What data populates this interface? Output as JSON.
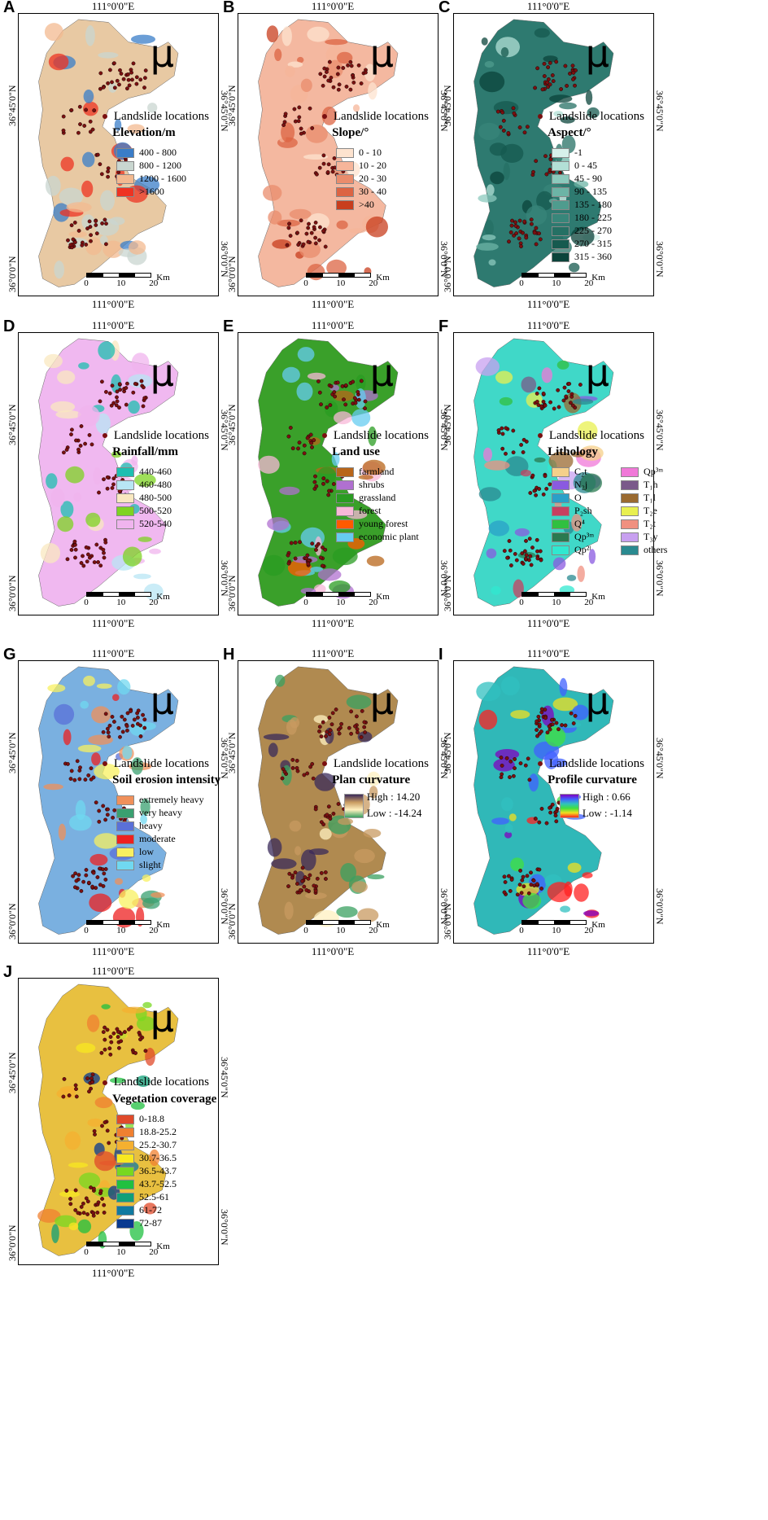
{
  "common": {
    "lon_label": "111°0'0\"E",
    "lat_top_label": "36°45'0\"N",
    "lat_bottom_label": "36°0'0\"N",
    "north_symbol": "μ",
    "landslide_label": "Landslide locations",
    "scale_ticks": [
      "0",
      "10",
      "20"
    ],
    "scale_unit": "Km",
    "landslide_color": "#7a1010"
  },
  "panels": [
    {
      "letter": "A",
      "title": "Elevation/m",
      "background": "#e8c9a3",
      "legend": [
        {
          "label": "400 - 800",
          "color": "#3a7dc8"
        },
        {
          "label": "800 - 1200",
          "color": "#c9d6d0"
        },
        {
          "label": "1200 - 1600",
          "color": "#f3b990"
        },
        {
          "label": ">1600",
          "color": "#ee3322"
        }
      ]
    },
    {
      "letter": "B",
      "title": "Slope/°",
      "background": "#f4b8a0",
      "legend": [
        {
          "label": "0 - 10",
          "color": "#fde3cf"
        },
        {
          "label": "10 - 20",
          "color": "#f6b59a"
        },
        {
          "label": "20 - 30",
          "color": "#ea8c6c"
        },
        {
          "label": "30 - 40",
          "color": "#dc6443"
        },
        {
          "label": ">40",
          "color": "#c83e1d"
        }
      ]
    },
    {
      "letter": "C",
      "title": "Aspect/°",
      "background": "#2e7a70",
      "legend": [
        {
          "label": "-1",
          "color": "#d6f0ea"
        },
        {
          "label": "0 - 45",
          "color": "#b2e0d6"
        },
        {
          "label": "45 - 90",
          "color": "#8ccabd"
        },
        {
          "label": "90 - 135",
          "color": "#6cb4a6"
        },
        {
          "label": "135 - 180",
          "color": "#4f9c8e"
        },
        {
          "label": "180 - 225",
          "color": "#38867a"
        },
        {
          "label": "225 - 270",
          "color": "#257064"
        },
        {
          "label": "270 - 315",
          "color": "#165a4f"
        },
        {
          "label": "315 - 360",
          "color": "#0b443b"
        }
      ]
    },
    {
      "letter": "D",
      "title": "Rainfall/mm",
      "background": "#f0b8f0",
      "legend": [
        {
          "label": "440-460",
          "color": "#1ebfb0"
        },
        {
          "label": "460-480",
          "color": "#b8e6f4"
        },
        {
          "label": "480-500",
          "color": "#f9e8c0"
        },
        {
          "label": "500-520",
          "color": "#7ed321"
        },
        {
          "label": "520-540",
          "color": "#f0b4ee"
        }
      ]
    },
    {
      "letter": "E",
      "title": "Land use",
      "background": "#3aa02a",
      "legend": [
        {
          "label": "farmland",
          "color": "#b8661a"
        },
        {
          "label": "shrubs",
          "color": "#b070d0"
        },
        {
          "label": "grassland",
          "color": "#2a9c22"
        },
        {
          "label": "forest",
          "color": "#f8b8d8"
        },
        {
          "label": "young forest",
          "color": "#ff5a00"
        },
        {
          "label": "economic plant",
          "color": "#66ccf0"
        }
      ]
    },
    {
      "letter": "F",
      "title": "Lithology",
      "background": "#40d8c8",
      "legend": [
        {
          "label": "C₂t",
          "color": "#f5d08a"
        },
        {
          "label": "Qp³ᵐ",
          "color": "#f078d8"
        },
        {
          "label": "N₂j",
          "color": "#8a5ae0"
        },
        {
          "label": "T₁h",
          "color": "#7a5a8a"
        },
        {
          "label": "O",
          "color": "#2aa0c8"
        },
        {
          "label": "T₁l",
          "color": "#9a6a30"
        },
        {
          "label": "P₂sh",
          "color": "#c84060"
        },
        {
          "label": "T₂e",
          "color": "#e8f050"
        },
        {
          "label": "Q⁴",
          "color": "#30c040"
        },
        {
          "label": "T₂t",
          "color": "#f09080"
        },
        {
          "label": "Qp³ᵐ",
          "color": "#2a7a50"
        },
        {
          "label": "T₃y",
          "color": "#c8a0f0"
        },
        {
          "label": "Qp²ˡ",
          "color": "#30e8d0"
        },
        {
          "label": "others",
          "color": "#2a8a90"
        }
      ]
    },
    {
      "letter": "G",
      "title": "Soil erosion intensity",
      "background": "#7ab0e0",
      "legend": [
        {
          "label": "extremely heavy",
          "color": "#f0905a"
        },
        {
          "label": "very heavy",
          "color": "#3aa070"
        },
        {
          "label": "heavy",
          "color": "#5a70d8"
        },
        {
          "label": "moderate",
          "color": "#ee2020"
        },
        {
          "label": "low",
          "color": "#f8f060"
        },
        {
          "label": "slight",
          "color": "#70d8f0"
        }
      ]
    },
    {
      "letter": "H",
      "title": "Plan curvature",
      "background": "#b08a50",
      "gradient": {
        "high": "High : 14.20",
        "low": "Low : -14.24",
        "colors": [
          "#3a2a5a",
          "#c89a60",
          "#fff0c0",
          "#3aa060"
        ]
      }
    },
    {
      "letter": "I",
      "title": "Profile curvature",
      "background": "#30b8b8",
      "gradient": {
        "high": "High : 0.66",
        "low": "Low : -1.14",
        "colors": [
          "#8000c0",
          "#4060ff",
          "#30c0c0",
          "#40e040",
          "#f0e020",
          "#ff2020"
        ]
      }
    },
    {
      "letter": "J",
      "title": "Vegetation coverage",
      "background": "#e8c040",
      "legend": [
        {
          "label": "0-18.8",
          "color": "#e04a2a"
        },
        {
          "label": "18.8-25.2",
          "color": "#f08030"
        },
        {
          "label": "25.2-30.7",
          "color": "#f5b030"
        },
        {
          "label": "30.7-36.5",
          "color": "#f8e820"
        },
        {
          "label": "36.5-43.7",
          "color": "#78d820"
        },
        {
          "label": "43.7-52.5",
          "color": "#20c040"
        },
        {
          "label": "52.5-61",
          "color": "#10a078"
        },
        {
          "label": "61-72",
          "color": "#107aa0"
        },
        {
          "label": "72-87",
          "color": "#0a3a90"
        }
      ]
    }
  ]
}
